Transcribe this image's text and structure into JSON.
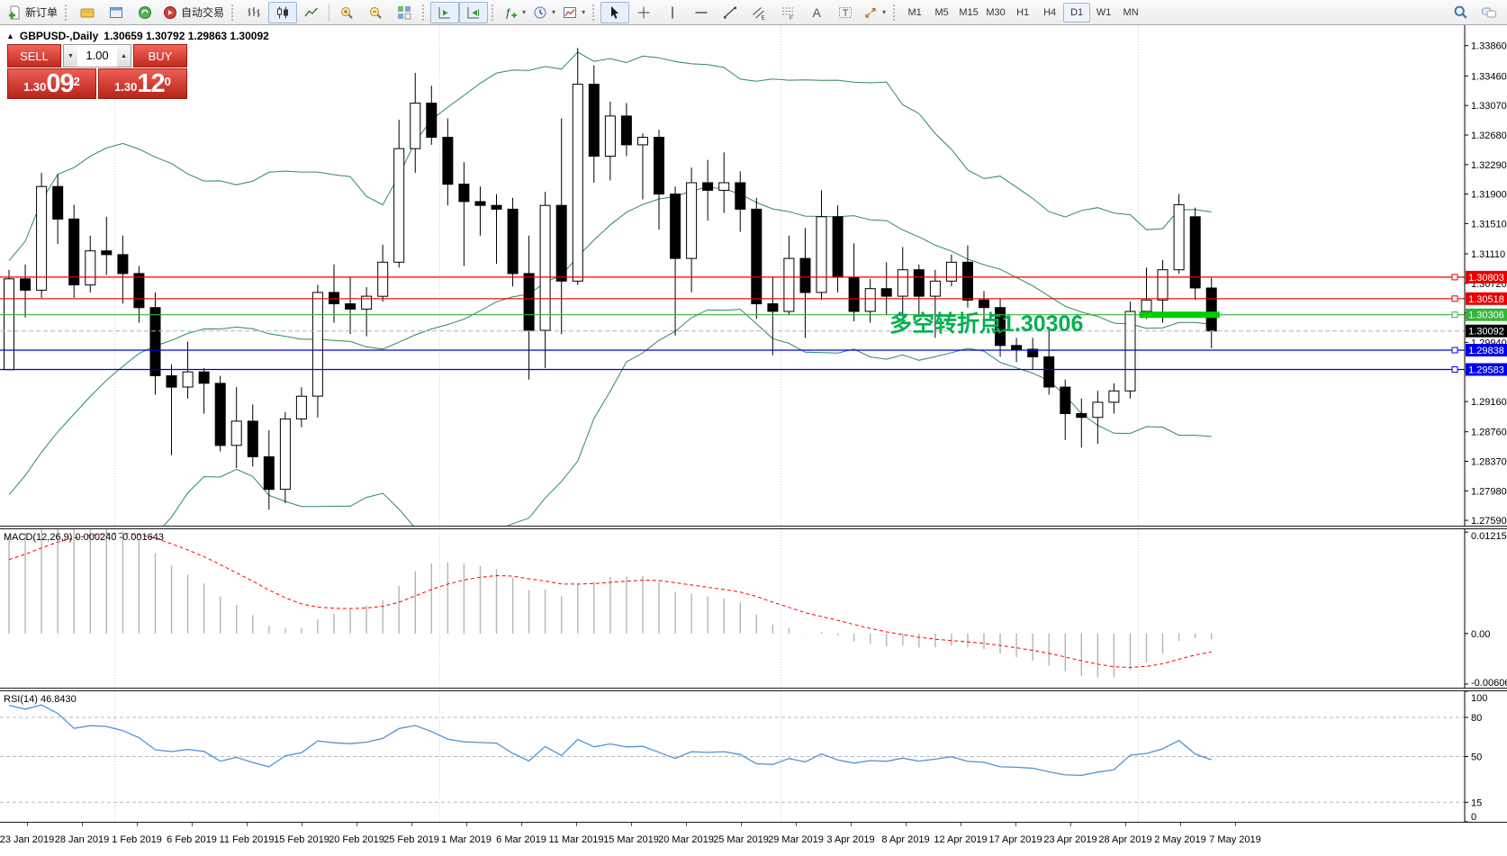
{
  "toolbar": {
    "new_order_label": "新订单",
    "autotrading_label": "自动交易",
    "timeframes": [
      "M1",
      "M5",
      "M15",
      "M30",
      "H1",
      "H4",
      "D1",
      "W1",
      "MN"
    ],
    "selected_timeframe": "D1"
  },
  "window": {
    "collapse_glyph": "▲",
    "title": "GBPUSD-,Daily",
    "ohlc": "1.30659 1.30792 1.29863 1.30092"
  },
  "trade_panel": {
    "sell_label": "SELL",
    "buy_label": "BUY",
    "volume": "1.00",
    "volume_down_glyph": "▼",
    "volume_up_glyph": "▲",
    "sell_prefix": "1.30",
    "sell_big": "09",
    "sell_sup": "2",
    "buy_prefix": "1.30",
    "buy_big": "12",
    "buy_sup": "0"
  },
  "annotation": {
    "text": "多空转折点1.30306",
    "color": "#00b050"
  },
  "icons": {
    "new-order-icon": "document with green plus",
    "chart-profiles-icon": "gold folder",
    "data-window-icon": "blue window",
    "strategy-tester-icon": "green sphere",
    "autotrading-icon": "red circle with play",
    "bar-chart-icon": "ohlc bars",
    "candlestick-icon": "candles",
    "line-chart-icon": "zigzag line",
    "zoom-in-icon": "magnifier plus",
    "zoom-out-icon": "magnifier minus",
    "tile-windows-icon": "colored grid",
    "auto-scroll-icon": "chart with play triangle",
    "chart-shift-icon": "chart with left triangle",
    "indicators-icon": "f plus",
    "periods-icon": "clock",
    "templates-icon": "mini chart",
    "cursor-icon": "pointer arrow",
    "crosshair-icon": "cross",
    "vertical-line-icon": "|",
    "horizontal-line-icon": "—",
    "trendline-icon": "/",
    "channel-icon": "parallel lines E",
    "fibonacci-icon": "dashed lines F",
    "text-icon": "A",
    "text-label-icon": "T in dashed box",
    "arrows-icon": "diagonal arrows",
    "search-icon": "blue magnifier",
    "chat-icon": "speech bubbles"
  },
  "chart_data": {
    "type": "candlestick",
    "symbol": "GBPUSD-",
    "timeframe": "Daily",
    "last_ohlc": {
      "open": 1.30659,
      "high": 1.30792,
      "low": 1.29863,
      "close": 1.30092
    },
    "price_range": [
      1.2752,
      1.3413
    ],
    "price_axis_ticks": [
      "1.33860",
      "1.33460",
      "1.33070",
      "1.32680",
      "1.32290",
      "1.31900",
      "1.31510",
      "1.31110",
      "1.30720",
      "1.30330",
      "1.29940",
      "1.29550",
      "1.29160",
      "1.28760",
      "1.28370",
      "1.27980",
      "1.27590"
    ],
    "date_ticks": [
      "23 Jan 2019",
      "28 Jan 2019",
      "1 Feb 2019",
      "6 Feb 2019",
      "11 Feb 2019",
      "15 Feb 2019",
      "20 Feb 2019",
      "25 Feb 2019",
      "1 Mar 2019",
      "6 Mar 2019",
      "11 Mar 2019",
      "15 Mar 2019",
      "20 Mar 2019",
      "25 Mar 2019",
      "29 Mar 2019",
      "3 Apr 2019",
      "8 Apr 2019",
      "12 Apr 2019",
      "17 Apr 2019",
      "23 Apr 2019",
      "28 Apr 2019",
      "2 May 2019",
      "7 May 2019"
    ],
    "month_separator_indices": [
      7,
      27,
      48,
      70
    ],
    "candles_format": "[open, high, low, close]",
    "candles": [
      [
        1.2958,
        1.309,
        1.2958,
        1.3078
      ],
      [
        1.3078,
        1.3097,
        1.3027,
        1.3063
      ],
      [
        1.3063,
        1.3218,
        1.3053,
        1.32
      ],
      [
        1.32,
        1.3216,
        1.3124,
        1.3157
      ],
      [
        1.3157,
        1.3176,
        1.3053,
        1.307
      ],
      [
        1.307,
        1.3135,
        1.306,
        1.3115
      ],
      [
        1.3115,
        1.316,
        1.3083,
        1.311
      ],
      [
        1.311,
        1.3135,
        1.3045,
        1.3085
      ],
      [
        1.3085,
        1.3095,
        1.302,
        1.304
      ],
      [
        1.304,
        1.306,
        1.2925,
        1.295
      ],
      [
        1.295,
        1.2965,
        1.2845,
        1.2935
      ],
      [
        1.2935,
        1.2995,
        1.292,
        1.2955
      ],
      [
        1.2955,
        1.296,
        1.29,
        1.294
      ],
      [
        1.294,
        1.295,
        1.285,
        1.2858
      ],
      [
        1.2858,
        1.2935,
        1.2828,
        1.289
      ],
      [
        1.289,
        1.2912,
        1.283,
        1.2843
      ],
      [
        1.2843,
        1.2878,
        1.2773,
        1.28
      ],
      [
        1.28,
        1.2902,
        1.2782,
        1.2893
      ],
      [
        1.2893,
        1.2935,
        1.2882,
        1.2923
      ],
      [
        1.2923,
        1.307,
        1.2895,
        1.306
      ],
      [
        1.306,
        1.3097,
        1.302,
        1.3045
      ],
      [
        1.3045,
        1.308,
        1.3005,
        1.3038
      ],
      [
        1.3038,
        1.3067,
        1.3002,
        1.3055
      ],
      [
        1.3055,
        1.3123,
        1.3048,
        1.31
      ],
      [
        1.31,
        1.3288,
        1.3093,
        1.325
      ],
      [
        1.325,
        1.335,
        1.3218,
        1.331
      ],
      [
        1.331,
        1.3333,
        1.3255,
        1.3265
      ],
      [
        1.3265,
        1.329,
        1.3175,
        1.3203
      ],
      [
        1.3203,
        1.3232,
        1.3095,
        1.318
      ],
      [
        1.318,
        1.32,
        1.3135,
        1.3175
      ],
      [
        1.3175,
        1.319,
        1.3098,
        1.317
      ],
      [
        1.317,
        1.3185,
        1.3068,
        1.3085
      ],
      [
        1.3085,
        1.3135,
        1.2945,
        1.301
      ],
      [
        1.301,
        1.3193,
        1.296,
        1.3175
      ],
      [
        1.3175,
        1.329,
        1.3005,
        1.3075
      ],
      [
        1.3075,
        1.3383,
        1.307,
        1.3335
      ],
      [
        1.3335,
        1.336,
        1.3205,
        1.324
      ],
      [
        1.324,
        1.3312,
        1.3208,
        1.3293
      ],
      [
        1.3293,
        1.331,
        1.324,
        1.3255
      ],
      [
        1.3255,
        1.327,
        1.3183,
        1.3265
      ],
      [
        1.3265,
        1.3275,
        1.3143,
        1.319
      ],
      [
        1.319,
        1.32,
        1.3003,
        1.3105
      ],
      [
        1.3105,
        1.3225,
        1.306,
        1.3205
      ],
      [
        1.3205,
        1.3235,
        1.3155,
        1.3195
      ],
      [
        1.3195,
        1.3245,
        1.3165,
        1.3205
      ],
      [
        1.3205,
        1.322,
        1.314,
        1.317
      ],
      [
        1.317,
        1.3185,
        1.3025,
        1.3045
      ],
      [
        1.3045,
        1.308,
        1.2977,
        1.3035
      ],
      [
        1.3035,
        1.3135,
        1.303,
        1.3105
      ],
      [
        1.3105,
        1.3145,
        1.3,
        1.306
      ],
      [
        1.306,
        1.3195,
        1.305,
        1.316
      ],
      [
        1.316,
        1.3175,
        1.306,
        1.308
      ],
      [
        1.308,
        1.3125,
        1.3022,
        1.3035
      ],
      [
        1.3035,
        1.3078,
        1.302,
        1.3065
      ],
      [
        1.3065,
        1.31,
        1.303,
        1.3055
      ],
      [
        1.3055,
        1.312,
        1.3028,
        1.309
      ],
      [
        1.309,
        1.3097,
        1.303,
        1.3055
      ],
      [
        1.3055,
        1.309,
        1.3,
        1.3075
      ],
      [
        1.3075,
        1.311,
        1.3068,
        1.31
      ],
      [
        1.31,
        1.3122,
        1.304,
        1.305
      ],
      [
        1.305,
        1.3062,
        1.301,
        1.304
      ],
      [
        1.304,
        1.3052,
        1.2975,
        1.299
      ],
      [
        1.299,
        1.3,
        1.2968,
        1.2985
      ],
      [
        1.2985,
        1.3,
        1.2958,
        1.2975
      ],
      [
        1.2975,
        1.301,
        1.2925,
        1.2935
      ],
      [
        1.2935,
        1.2945,
        1.2865,
        1.29
      ],
      [
        1.29,
        1.292,
        1.2855,
        1.2895
      ],
      [
        1.2895,
        1.293,
        1.286,
        1.2915
      ],
      [
        1.2915,
        1.294,
        1.29,
        1.293
      ],
      [
        1.293,
        1.3048,
        1.292,
        1.3035
      ],
      [
        1.3035,
        1.3093,
        1.3025,
        1.305
      ],
      [
        1.305,
        1.3103,
        1.302,
        1.309
      ],
      [
        1.309,
        1.319,
        1.3085,
        1.3176
      ],
      [
        1.316,
        1.3172,
        1.305,
        1.3066
      ],
      [
        1.30659,
        1.30792,
        1.29863,
        1.30092
      ]
    ],
    "indicator_warmup_closes": [
      1.255,
      1.2585,
      1.262,
      1.26,
      1.265,
      1.268,
      1.272,
      1.27,
      1.275,
      1.279,
      1.277,
      1.282,
      1.286,
      1.284,
      1.289,
      1.293,
      1.296,
      1.3,
      1.306
    ],
    "overlays": {
      "bollinger": {
        "period": 20,
        "deviation": 2,
        "color": "#2e8b57"
      }
    },
    "horizontal_lines": [
      {
        "price": 1.30803,
        "label": "1.30803",
        "color": "#e80000"
      },
      {
        "price": 1.30518,
        "label": "1.30518",
        "color": "#e80000"
      },
      {
        "price": 1.30306,
        "label": "1.30306",
        "color": "#35b53a"
      },
      {
        "price": 1.29838,
        "label": "1.29838",
        "color": "#0000e8"
      },
      {
        "price": 1.29583,
        "label": "1.29583",
        "color": "#0000e8"
      }
    ],
    "current_price": {
      "value": 1.30092,
      "label": "1.30092",
      "badge_color": "#000000"
    },
    "highlight_segment": {
      "price": 1.30306,
      "from_index": 70,
      "to_index": 74,
      "color": "#00cc00"
    },
    "indicators": [
      {
        "name": "MACD",
        "label": "MACD(12,26,9) 0.000240 -0.001643",
        "params": [
          12,
          26,
          9
        ],
        "values_display": [
          0.00024,
          -0.001643
        ],
        "axis_ticks": [
          "0.012157",
          "0.00",
          "-0.006064"
        ],
        "range": [
          -0.0065,
          0.0125
        ],
        "histogram_color": "#b4b4b4",
        "signal_color": "#ff0000"
      },
      {
        "name": "RSI",
        "label": "RSI(14) 46.8430",
        "params": [
          14
        ],
        "value_display": 46.843,
        "axis_ticks": [
          "100",
          "80",
          "50",
          "15",
          "0"
        ],
        "levels": [
          80,
          50,
          15
        ],
        "range": [
          0,
          100
        ],
        "line_color": "#4f94d4"
      }
    ]
  }
}
